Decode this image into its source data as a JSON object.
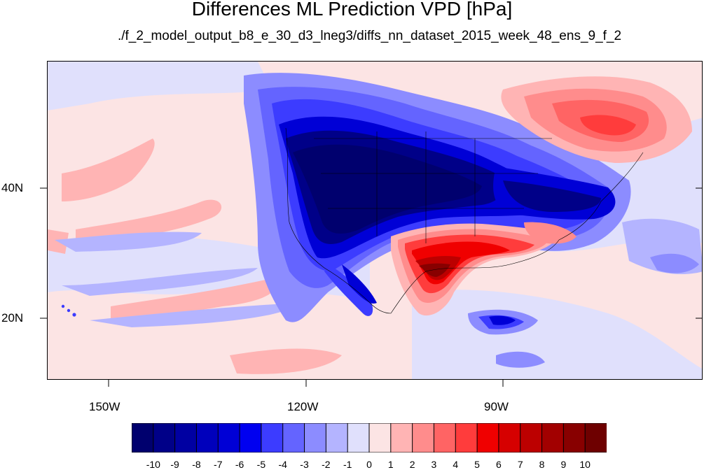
{
  "title": "Differences ML Prediction VPD [hPa]",
  "subtitle": "./f_2_model_output_b8_e_30_d3_lneg3/diffs_nn_dataset_2015_week_48_ens_9_f_2",
  "axes": {
    "lat_labels": [
      "40N",
      "20N"
    ],
    "lon_labels": [
      "150W",
      "120W",
      "90W"
    ]
  },
  "colorbar": {
    "labels": [
      "-10",
      "-9",
      "-8",
      "-7",
      "-6",
      "-5",
      "-4",
      "-3",
      "-2",
      "-1",
      "0",
      "1",
      "2",
      "3",
      "4",
      "5",
      "6",
      "7",
      "8",
      "9",
      "10"
    ],
    "colors": [
      "#00006e",
      "#000088",
      "#0000a2",
      "#0000bc",
      "#0000d6",
      "#0000f0",
      "#3c3cff",
      "#6464ff",
      "#8c8cff",
      "#b4b4ff",
      "#e0e0fc",
      "#fce4e4",
      "#ffb4b4",
      "#ff8c8c",
      "#ff6464",
      "#ff3c3c",
      "#f00000",
      "#d60000",
      "#bc0000",
      "#a20000",
      "#880000",
      "#6e0000"
    ]
  },
  "map": {
    "background_color": "#fce4e4",
    "neutral_blue": "#e0e0fc"
  }
}
